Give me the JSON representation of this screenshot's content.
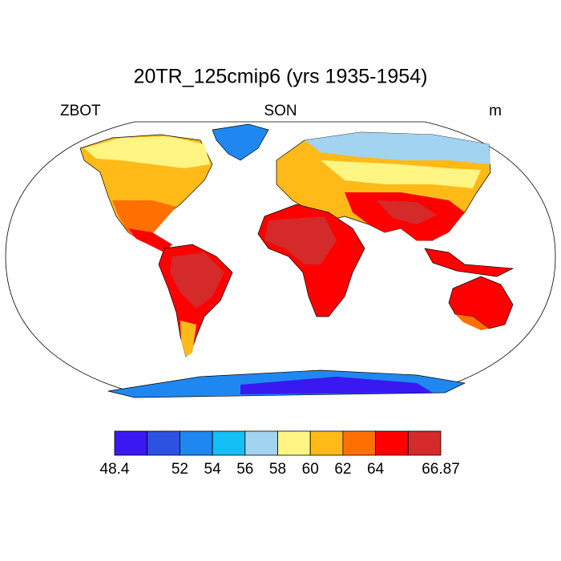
{
  "header": {
    "title": "20TR_125cmip6 (yrs 1935-1954)",
    "left": "ZBOT",
    "center": "SON",
    "right": "m"
  },
  "colorbar": {
    "colors": [
      "#3a18f2",
      "#2d52e2",
      "#1f88f0",
      "#14bff6",
      "#a2d3f0",
      "#fff582",
      "#ffba18",
      "#ff7000",
      "#ff0000",
      "#d42a2a"
    ],
    "boundaries": [
      48.4,
      null,
      52,
      54,
      56,
      58,
      60,
      62,
      64,
      null,
      66.87
    ]
  }
}
